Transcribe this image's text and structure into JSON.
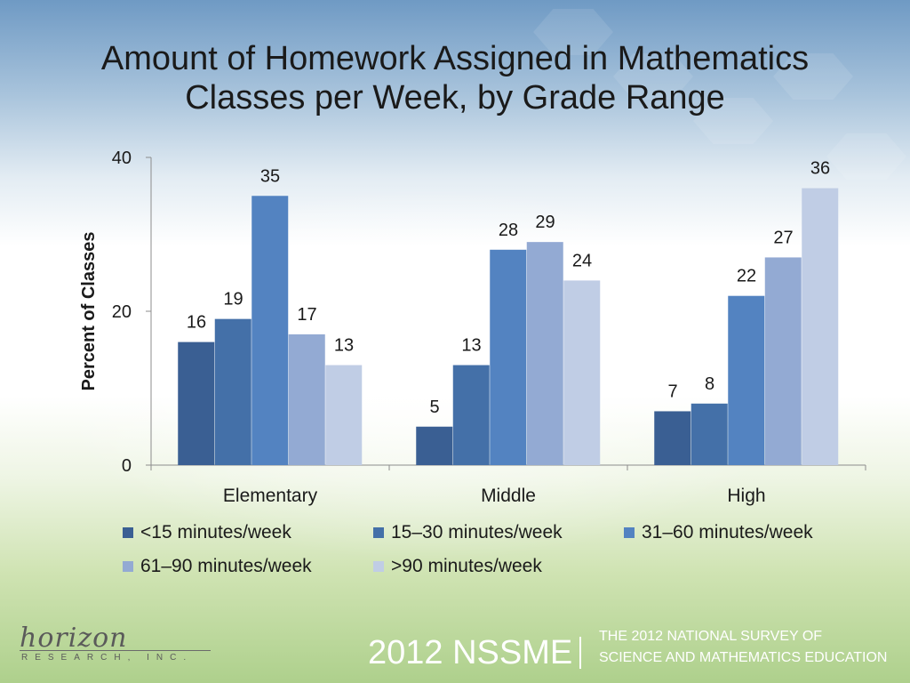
{
  "title": "Amount of Homework Assigned in Mathematics\nClasses per Week, by Grade Range",
  "chart_data": {
    "type": "bar",
    "title": "Amount of Homework Assigned in Mathematics Classes per Week, by Grade Range",
    "xlabel": "",
    "ylabel": "Percent of Classes",
    "ylim": [
      0,
      40
    ],
    "yticks": [
      0,
      20,
      40
    ],
    "grid": false,
    "legend_position": "bottom",
    "categories": [
      "Elementary",
      "Middle",
      "High"
    ],
    "series": [
      {
        "name": "<15 minutes/week",
        "values": [
          16,
          5,
          7
        ],
        "color": "#3a5f93"
      },
      {
        "name": "15–30 minutes/week",
        "values": [
          19,
          13,
          8
        ],
        "color": "#4470a8"
      },
      {
        "name": "31–60 minutes/week",
        "values": [
          35,
          28,
          22
        ],
        "color": "#5383c1"
      },
      {
        "name": "61–90 minutes/week",
        "values": [
          17,
          29,
          27
        ],
        "color": "#93aad3"
      },
      {
        "name": ">90 minutes/week",
        "values": [
          13,
          24,
          36
        ],
        "color": "#c0cde5"
      }
    ]
  },
  "footer": {
    "logo_word": "horizon",
    "logo_sub": "RESEARCH, INC.",
    "brand": "2012 NSSME",
    "subtitle_line1": "THE 2012 NATIONAL SURVEY OF",
    "subtitle_line2": "SCIENCE AND MATHEMATICS EDUCATION"
  }
}
